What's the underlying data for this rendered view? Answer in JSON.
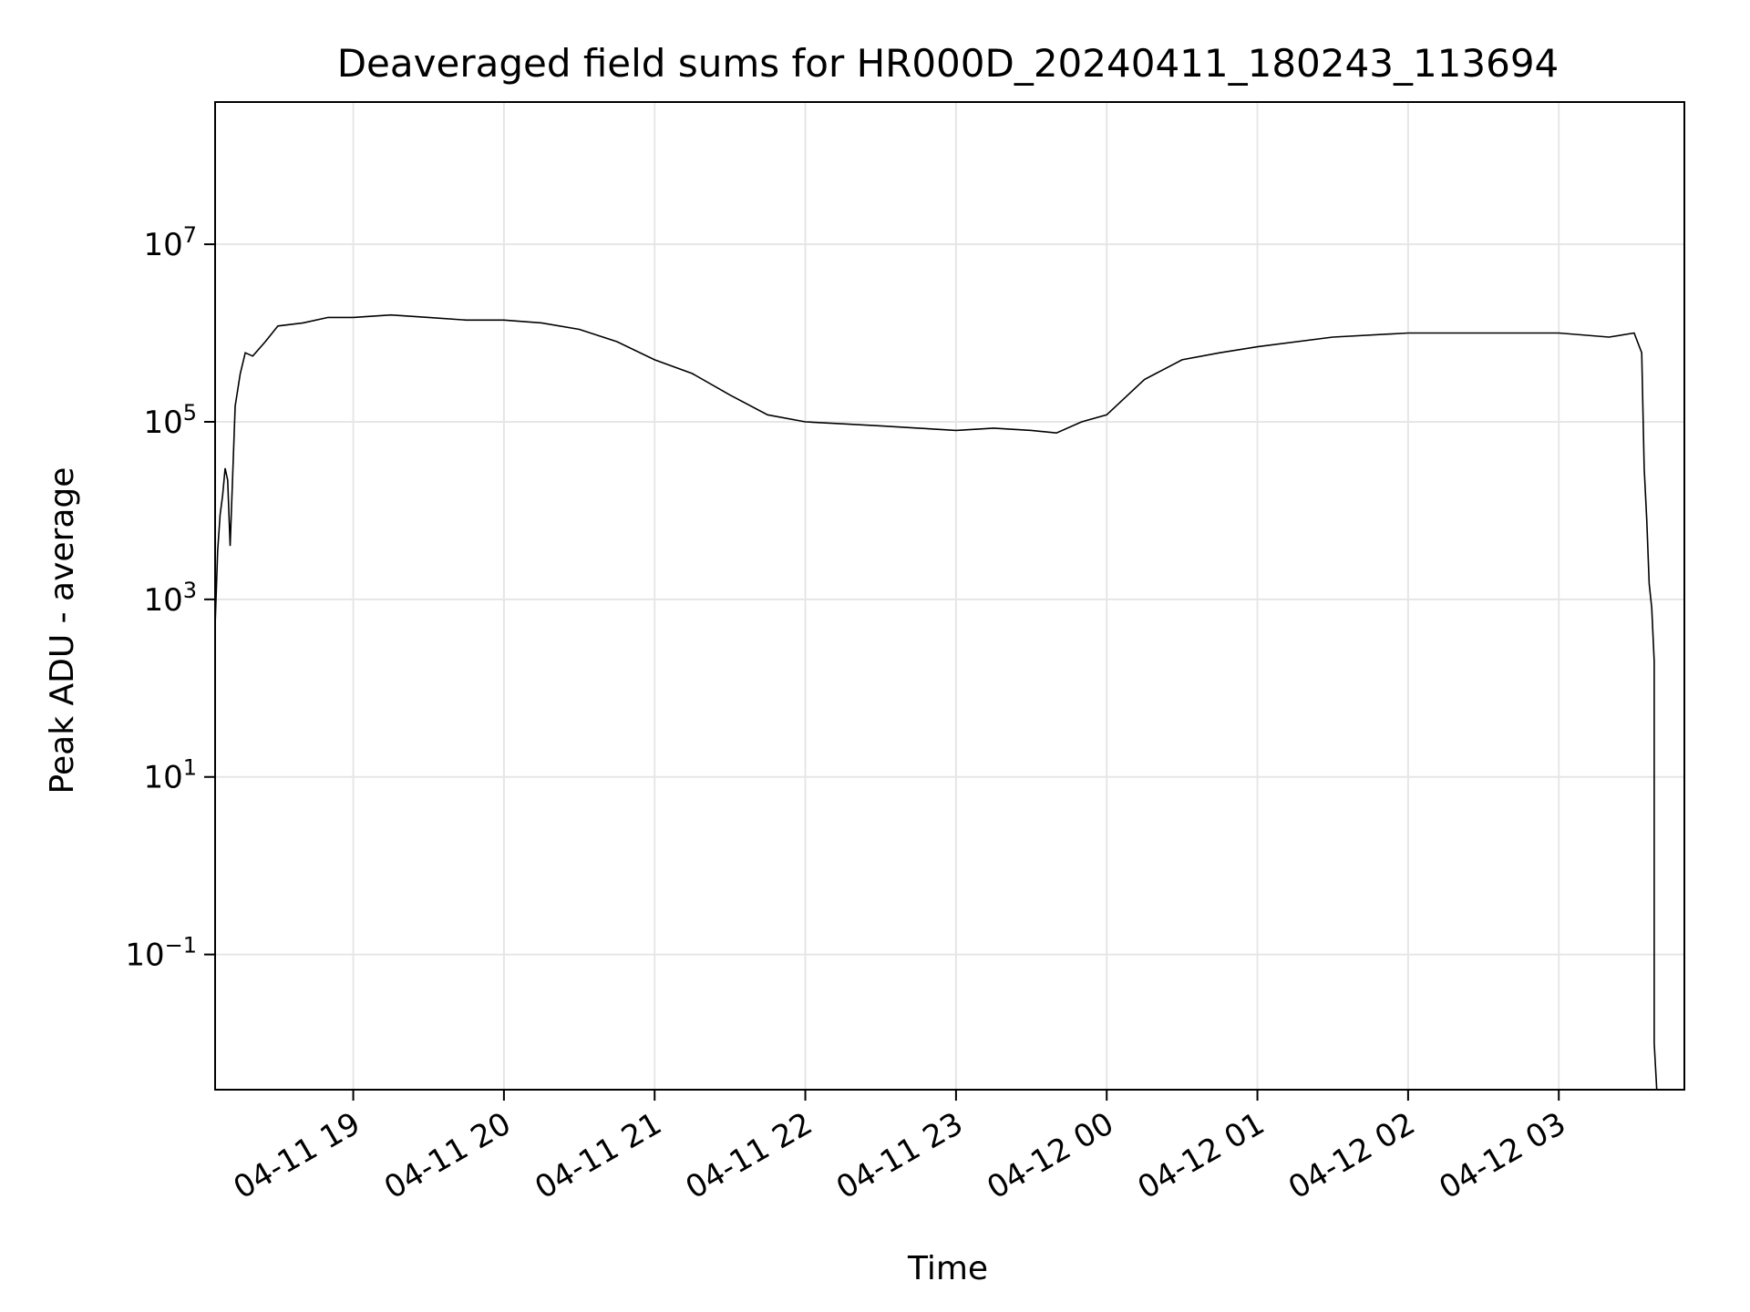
{
  "chart_data": {
    "type": "line",
    "title": "Deaveraged field sums for HR000D_20240411_180243_113694",
    "xlabel": "Time",
    "ylabel": "Peak ADU - average",
    "yscale": "log",
    "ylim": [
      0.003,
      400000000
    ],
    "xlim": [
      "2024-04-11 18:05",
      "2024-04-12 03:50"
    ],
    "grid": true,
    "line_color": "#000000",
    "x_ticks": [
      {
        "t": "2024-04-11 19:00",
        "label": "04-11 19"
      },
      {
        "t": "2024-04-11 20:00",
        "label": "04-11 20"
      },
      {
        "t": "2024-04-11 21:00",
        "label": "04-11 21"
      },
      {
        "t": "2024-04-11 22:00",
        "label": "04-11 22"
      },
      {
        "t": "2024-04-11 23:00",
        "label": "04-11 23"
      },
      {
        "t": "2024-04-12 00:00",
        "label": "04-12 00"
      },
      {
        "t": "2024-04-12 01:00",
        "label": "04-12 01"
      },
      {
        "t": "2024-04-12 02:00",
        "label": "04-12 02"
      },
      {
        "t": "2024-04-12 03:00",
        "label": "04-12 03"
      }
    ],
    "y_ticks": [
      {
        "value": 10000000,
        "base": "10",
        "exp": "7"
      },
      {
        "value": 100000,
        "base": "10",
        "exp": "5"
      },
      {
        "value": 1000,
        "base": "10",
        "exp": "3"
      },
      {
        "value": 10,
        "base": "10",
        "exp": "1"
      },
      {
        "value": 0.1,
        "base": "10",
        "exp": "−1"
      }
    ],
    "series": [
      {
        "points": [
          [
            "2024-04-11 18:05",
            500
          ],
          [
            "2024-04-11 18:06",
            3500
          ],
          [
            "2024-04-11 18:07",
            9000
          ],
          [
            "2024-04-11 18:08",
            15000
          ],
          [
            "2024-04-11 18:09",
            30000
          ],
          [
            "2024-04-11 18:10",
            22000
          ],
          [
            "2024-04-11 18:11",
            4000
          ],
          [
            "2024-04-11 18:12",
            25000
          ],
          [
            "2024-04-11 18:13",
            150000
          ],
          [
            "2024-04-11 18:15",
            350000
          ],
          [
            "2024-04-11 18:17",
            600000
          ],
          [
            "2024-04-11 18:20",
            550000
          ],
          [
            "2024-04-11 18:25",
            800000
          ],
          [
            "2024-04-11 18:30",
            1200000
          ],
          [
            "2024-04-11 18:40",
            1300000
          ],
          [
            "2024-04-11 18:50",
            1500000
          ],
          [
            "2024-04-11 19:00",
            1500000
          ],
          [
            "2024-04-11 19:15",
            1600000
          ],
          [
            "2024-04-11 19:30",
            1500000
          ],
          [
            "2024-04-11 19:45",
            1400000
          ],
          [
            "2024-04-11 20:00",
            1400000
          ],
          [
            "2024-04-11 20:15",
            1300000
          ],
          [
            "2024-04-11 20:30",
            1100000
          ],
          [
            "2024-04-11 20:45",
            800000
          ],
          [
            "2024-04-11 21:00",
            500000
          ],
          [
            "2024-04-11 21:15",
            350000
          ],
          [
            "2024-04-11 21:30",
            200000
          ],
          [
            "2024-04-11 21:45",
            120000
          ],
          [
            "2024-04-11 22:00",
            100000
          ],
          [
            "2024-04-11 22:15",
            95000
          ],
          [
            "2024-04-11 22:30",
            90000
          ],
          [
            "2024-04-11 22:45",
            85000
          ],
          [
            "2024-04-11 23:00",
            80000
          ],
          [
            "2024-04-11 23:15",
            85000
          ],
          [
            "2024-04-11 23:30",
            80000
          ],
          [
            "2024-04-11 23:40",
            75000
          ],
          [
            "2024-04-11 23:50",
            100000
          ],
          [
            "2024-04-12 00:00",
            120000
          ],
          [
            "2024-04-12 00:15",
            300000
          ],
          [
            "2024-04-12 00:30",
            500000
          ],
          [
            "2024-04-12 00:45",
            600000
          ],
          [
            "2024-04-12 01:00",
            700000
          ],
          [
            "2024-04-12 01:30",
            900000
          ],
          [
            "2024-04-12 02:00",
            1000000
          ],
          [
            "2024-04-12 02:30",
            1000000
          ],
          [
            "2024-04-12 03:00",
            1000000
          ],
          [
            "2024-04-12 03:20",
            900000
          ],
          [
            "2024-04-12 03:30",
            1000000
          ],
          [
            "2024-04-12 03:33",
            600000
          ],
          [
            "2024-04-12 03:34",
            30000
          ],
          [
            "2024-04-12 03:35",
            8000
          ],
          [
            "2024-04-12 03:36",
            1500
          ],
          [
            "2024-04-12 03:37",
            800
          ],
          [
            "2024-04-12 03:38",
            200
          ],
          [
            "2024-04-12 03:38",
            0.01
          ],
          [
            "2024-04-12 03:39",
            0.003
          ]
        ]
      }
    ]
  }
}
